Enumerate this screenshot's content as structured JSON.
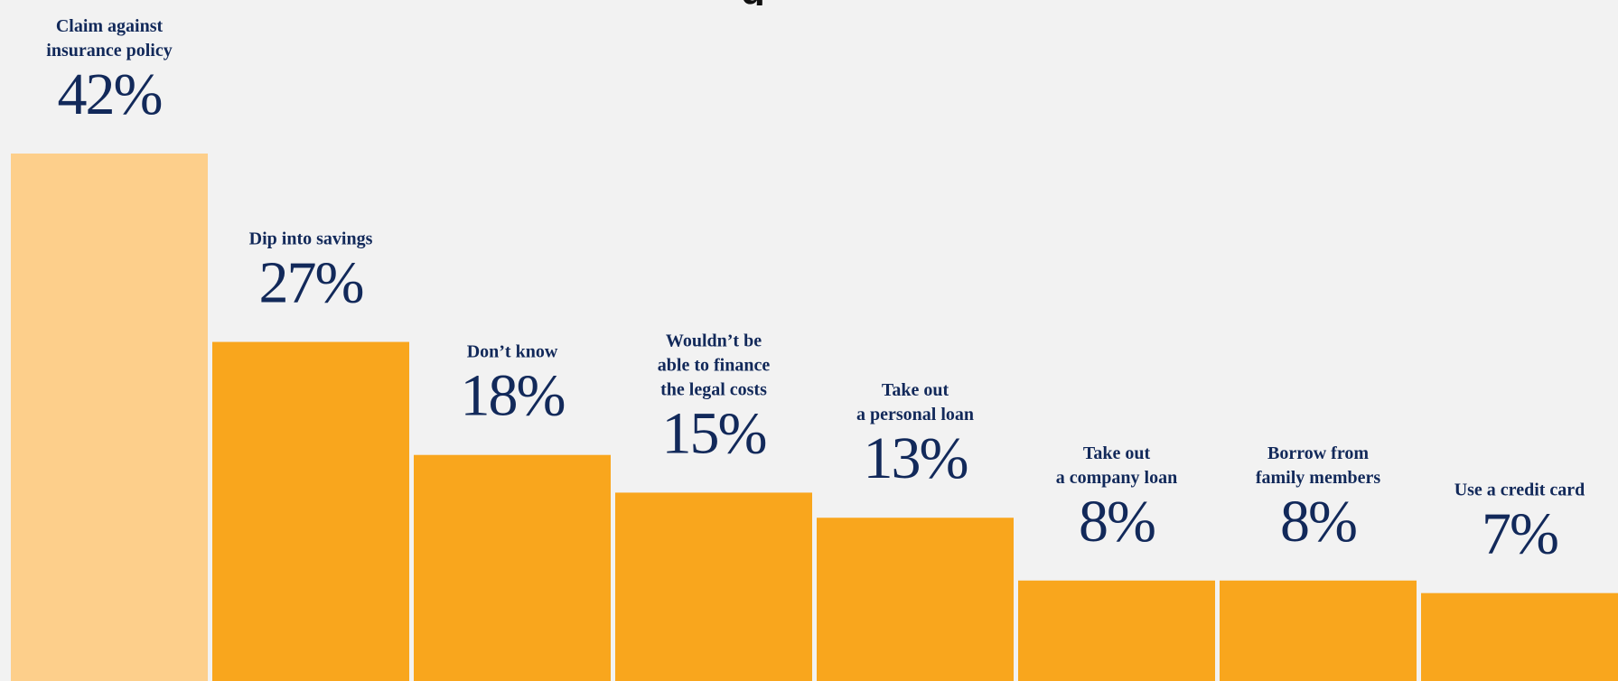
{
  "chart_data": {
    "type": "bar",
    "title": "",
    "xlabel": "",
    "ylabel": "",
    "ylim": [
      0,
      42
    ],
    "grid": false,
    "legend": "none",
    "categories": [
      [
        "Claim against",
        "insurance policy"
      ],
      [
        "Dip into savings"
      ],
      [
        "Don’t know"
      ],
      [
        "Wouldn’t be",
        "able to finance",
        "the legal costs"
      ],
      [
        "Take out",
        "a personal loan"
      ],
      [
        "Take out",
        "a company loan"
      ],
      [
        "Borrow from",
        "family members"
      ],
      [
        "Use a credit card"
      ]
    ],
    "values": [
      42,
      27,
      18,
      15,
      13,
      8,
      8,
      7
    ],
    "value_labels": [
      "42%",
      "27%",
      "18%",
      "15%",
      "13%",
      "8%",
      "8%",
      "7%"
    ],
    "colors": {
      "highlight": "#fdcf8b",
      "bar": "#f9a61d",
      "text": "#12295a",
      "background": "#f2f2f2"
    },
    "highlight_index": 0
  }
}
